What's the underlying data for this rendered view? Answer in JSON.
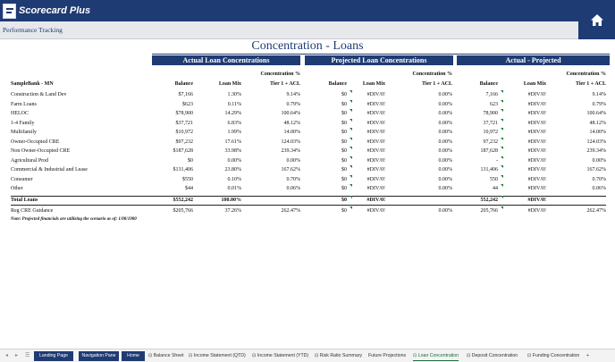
{
  "app": {
    "title": "Scorecard Plus",
    "subtitle": "Performance Tracking"
  },
  "page": {
    "title": "Concentration - Loans",
    "groups": [
      "Actual Loan Concentrations",
      "Projected Loan Concentrations",
      "Actual - Projected"
    ],
    "bank_label": "SampleBank - MN",
    "col_headers": {
      "balance": "Balance",
      "loan_mix": "Loan Mix",
      "conc_top": "Concentration %",
      "conc_bottom": "Tier 1 + ACL"
    },
    "rows": [
      {
        "name": "Construction & Land Dev",
        "a": [
          "$7,166",
          "1.30%",
          "9.14%"
        ],
        "p": [
          "$0",
          "#DIV/0!",
          "0.00%"
        ],
        "d": [
          "7,166",
          "#DIV/0!",
          "9.14%"
        ]
      },
      {
        "name": "Farm Loans",
        "a": [
          "$623",
          "0.11%",
          "0.79%"
        ],
        "p": [
          "$0",
          "#DIV/0!",
          "0.00%"
        ],
        "d": [
          "623",
          "#DIV/0!",
          "0.79%"
        ]
      },
      {
        "name": "HELOC",
        "a": [
          "$78,900",
          "14.29%",
          "100.64%"
        ],
        "p": [
          "$0",
          "#DIV/0!",
          "0.00%"
        ],
        "d": [
          "78,900",
          "#DIV/0!",
          "100.64%"
        ]
      },
      {
        "name": "1-4 Family",
        "a": [
          "$37,721",
          "6.83%",
          "48.12%"
        ],
        "p": [
          "$0",
          "#DIV/0!",
          "0.00%"
        ],
        "d": [
          "37,721",
          "#DIV/0!",
          "48.12%"
        ]
      },
      {
        "name": "Multifamily",
        "a": [
          "$10,972",
          "1.99%",
          "14.00%"
        ],
        "p": [
          "$0",
          "#DIV/0!",
          "0.00%"
        ],
        "d": [
          "10,972",
          "#DIV/0!",
          "14.00%"
        ]
      },
      {
        "name": "Owner-Occupied CRE",
        "a": [
          "$97,232",
          "17.61%",
          "124.03%"
        ],
        "p": [
          "$0",
          "#DIV/0!",
          "0.00%"
        ],
        "d": [
          "97,232",
          "#DIV/0!",
          "124.03%"
        ]
      },
      {
        "name": "Non Owner-Occupied CRE",
        "a": [
          "$187,628",
          "33.98%",
          "239.34%"
        ],
        "p": [
          "$0",
          "#DIV/0!",
          "0.00%"
        ],
        "d": [
          "187,628",
          "#DIV/0!",
          "239.34%"
        ]
      },
      {
        "name": "Agricultural Prod",
        "a": [
          "$0",
          "0.00%",
          "0.00%"
        ],
        "p": [
          "$0",
          "#DIV/0!",
          "0.00%"
        ],
        "d": [
          "-",
          "#DIV/0!",
          "0.00%"
        ]
      },
      {
        "name": "Commercial & Industrial and Lease",
        "a": [
          "$131,406",
          "23.80%",
          "167.62%"
        ],
        "p": [
          "$0",
          "#DIV/0!",
          "0.00%"
        ],
        "d": [
          "131,406",
          "#DIV/0!",
          "167.62%"
        ]
      },
      {
        "name": "Consumer",
        "a": [
          "$550",
          "0.10%",
          "0.70%"
        ],
        "p": [
          "$0",
          "#DIV/0!",
          "0.00%"
        ],
        "d": [
          "550",
          "#DIV/0!",
          "0.70%"
        ]
      },
      {
        "name": "Other",
        "a": [
          "$44",
          "0.01%",
          "0.06%"
        ],
        "p": [
          "$0",
          "#DIV/0!",
          "0.00%"
        ],
        "d": [
          "44",
          "#DIV/0!",
          "0.06%"
        ]
      }
    ],
    "total": {
      "name": "Total Loans",
      "a": [
        "$552,242",
        "100.00%",
        ""
      ],
      "p": [
        "$0",
        "#DIV/0!",
        ""
      ],
      "d": [
        "552,242",
        "#DIV/0!",
        ""
      ]
    },
    "reg": {
      "name": "Reg CRE Guidance",
      "a": [
        "$205,766",
        "37.26%",
        "262.47%"
      ],
      "p": [
        "$0",
        "#DIV/0!",
        "0.00%"
      ],
      "d": [
        "205,766",
        "#DIV/0!",
        "262.47%"
      ]
    },
    "note": "Note: Projected financials are utilizing the scenario as of: 1/00/1900"
  },
  "tabs": {
    "nav": [
      "Landing Page",
      "Navigation Pane",
      "Home"
    ],
    "sheets": [
      "Balance Sheet",
      "Income Statement (QTD)",
      "Income Statement (YTD)",
      "Risk Ratio Summary",
      "Future Projections",
      "Loan Concentration",
      "Deposit Concentration",
      "Funding Concentration"
    ],
    "add": "+"
  },
  "colors": {
    "brand": "#1f3b73",
    "active_tab": "#1a6b3a",
    "comment_marker": "#1a7f3a"
  }
}
